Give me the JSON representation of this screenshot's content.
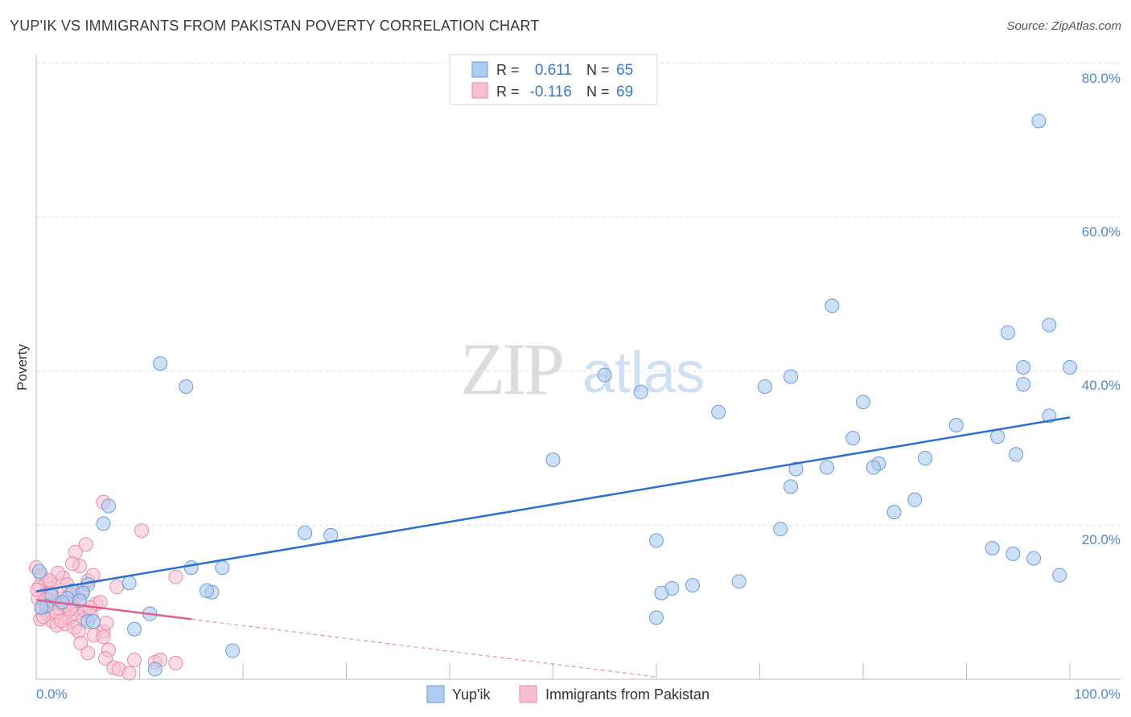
{
  "title": "YUP'IK VS IMMIGRANTS FROM PAKISTAN POVERTY CORRELATION CHART",
  "source": "Source: ZipAtlas.com",
  "watermark": {
    "zip": "ZIP",
    "atlas": "atlas"
  },
  "legend_top": {
    "rows": [
      {
        "r_label": "R =",
        "r_value": "0.611",
        "n_label": "N =",
        "n_value": "65"
      },
      {
        "r_label": "R =",
        "r_value": "-0.116",
        "n_label": "N =",
        "n_value": "69"
      }
    ]
  },
  "legend_bottom": {
    "items": [
      "Yup'ik",
      "Immigrants from Pakistan"
    ]
  },
  "colors": {
    "blue_fill": "#aecbf0",
    "blue_stroke": "#6a9bd8",
    "blue_line": "#2b6fcf",
    "pink_fill": "#f7bfd0",
    "pink_stroke": "#e98aa8",
    "pink_line": "#e0608c",
    "tick_label": "#4f86cf",
    "grid": "#dddddd"
  },
  "chart_data": {
    "type": "scatter",
    "ylabel": "Poverty",
    "xlabel": "",
    "xlim": [
      0,
      100
    ],
    "ylim": [
      0,
      80
    ],
    "x_tick_labels": [
      "0.0%",
      "100.0%"
    ],
    "y_ticks": [
      20,
      40,
      60,
      80
    ],
    "y_tick_labels": [
      "20.0%",
      "40.0%",
      "60.0%",
      "80.0%"
    ],
    "grid": true,
    "series": [
      {
        "name": "Yup'ik",
        "trend": {
          "x": [
            0,
            100
          ],
          "y": [
            11.4,
            34.0
          ]
        },
        "points": [
          [
            97,
            72.5
          ],
          [
            77,
            48.5
          ],
          [
            98,
            46
          ],
          [
            94,
            45
          ],
          [
            100,
            40.5
          ],
          [
            95.5,
            40.5
          ],
          [
            12,
            41
          ],
          [
            14.5,
            38
          ],
          [
            55,
            39.5
          ],
          [
            73,
            39.3
          ],
          [
            70.5,
            38
          ],
          [
            95.5,
            38.3
          ],
          [
            58.5,
            37.3
          ],
          [
            80,
            36
          ],
          [
            66,
            34.7
          ],
          [
            98,
            34.2
          ],
          [
            89,
            33
          ],
          [
            93,
            31.5
          ],
          [
            79,
            31.3
          ],
          [
            94.8,
            29.2
          ],
          [
            50,
            28.5
          ],
          [
            86,
            28.7
          ],
          [
            81.5,
            28
          ],
          [
            76.5,
            27.5
          ],
          [
            73.5,
            27.3
          ],
          [
            81,
            27.5
          ],
          [
            73,
            25
          ],
          [
            85,
            23.3
          ],
          [
            83,
            21.7
          ],
          [
            7,
            22.5
          ],
          [
            6.5,
            20.2
          ],
          [
            72,
            19.5
          ],
          [
            26,
            19
          ],
          [
            28.5,
            18.7
          ],
          [
            60,
            18
          ],
          [
            92.5,
            17
          ],
          [
            94.5,
            16.3
          ],
          [
            96.5,
            15.7
          ],
          [
            15,
            14.5
          ],
          [
            18,
            14.5
          ],
          [
            99,
            13.5
          ],
          [
            9,
            12.5
          ],
          [
            5,
            12.3
          ],
          [
            68,
            12.7
          ],
          [
            63.5,
            12.2
          ],
          [
            61.5,
            11.8
          ],
          [
            17,
            11.3
          ],
          [
            3.5,
            11.5
          ],
          [
            4.5,
            11.2
          ],
          [
            16.5,
            11.5
          ],
          [
            60.5,
            11.2
          ],
          [
            0.3,
            14
          ],
          [
            1.5,
            10.8
          ],
          [
            3,
            10.5
          ],
          [
            4.2,
            10.2
          ],
          [
            2.5,
            10
          ],
          [
            1,
            9.5
          ],
          [
            0.5,
            9.3
          ],
          [
            11,
            8.5
          ],
          [
            5,
            7.5
          ],
          [
            5.5,
            7.5
          ],
          [
            60,
            8
          ],
          [
            9.5,
            6.5
          ],
          [
            19,
            3.7
          ],
          [
            11.5,
            1.3
          ]
        ]
      },
      {
        "name": "Immigrants from Pakistan",
        "trend": {
          "x": [
            0,
            15
          ],
          "y": [
            10.3,
            7.8
          ]
        },
        "trend_dashed": {
          "x": [
            15,
            60
          ],
          "y": [
            7.8,
            0.3
          ]
        },
        "points": [
          [
            0,
            14.5
          ],
          [
            0.5,
            13.5
          ],
          [
            1,
            12.5
          ],
          [
            0.3,
            12
          ],
          [
            1.5,
            11.8
          ],
          [
            0.8,
            11
          ],
          [
            0.2,
            10.5
          ],
          [
            1.2,
            10.2
          ],
          [
            1.8,
            10
          ],
          [
            2.2,
            9.8
          ],
          [
            2.5,
            10.5
          ],
          [
            0.6,
            9.2
          ],
          [
            1.1,
            8.5
          ],
          [
            0.4,
            7.8
          ],
          [
            1.6,
            7.5
          ],
          [
            2,
            7
          ],
          [
            2.8,
            7.2
          ],
          [
            3.2,
            8
          ],
          [
            3.6,
            9.5
          ],
          [
            4,
            10.8
          ],
          [
            4.5,
            11.5
          ],
          [
            5,
            12.8
          ],
          [
            5.5,
            13.5
          ],
          [
            4.2,
            14.7
          ],
          [
            3.8,
            16.5
          ],
          [
            4.8,
            17.5
          ],
          [
            3.5,
            15
          ],
          [
            2.6,
            13.2
          ],
          [
            3,
            12.3
          ],
          [
            3.4,
            11
          ],
          [
            2.3,
            9.2
          ],
          [
            3.9,
            8.5
          ],
          [
            4.6,
            7.8
          ],
          [
            5.3,
            8.3
          ],
          [
            5.8,
            9.8
          ],
          [
            6.2,
            10
          ],
          [
            6.5,
            6.2
          ],
          [
            3.7,
            6.7
          ],
          [
            4.1,
            6.2
          ],
          [
            5.6,
            5.7
          ],
          [
            4.3,
            4.7
          ],
          [
            5,
            3.4
          ],
          [
            6.5,
            5.5
          ],
          [
            7,
            3.8
          ],
          [
            6.7,
            2.7
          ],
          [
            7.5,
            1.5
          ],
          [
            8,
            1.3
          ],
          [
            9,
            0.8
          ],
          [
            9.5,
            2.5
          ],
          [
            11.5,
            2.2
          ],
          [
            12,
            2.5
          ],
          [
            13.5,
            2.1
          ],
          [
            6.5,
            23
          ],
          [
            10.2,
            19.3
          ],
          [
            7.8,
            12
          ],
          [
            13.5,
            13.3
          ],
          [
            2.1,
            13.8
          ],
          [
            1.4,
            11.2
          ],
          [
            0.9,
            10.4
          ],
          [
            2.7,
            9.6
          ],
          [
            3.3,
            9.1
          ],
          [
            4.7,
            8.9
          ],
          [
            5.2,
            9.3
          ],
          [
            0.7,
            8.1
          ],
          [
            1.9,
            8.7
          ],
          [
            2.4,
            7.6
          ],
          [
            6.8,
            7.3
          ],
          [
            1.3,
            12.8
          ],
          [
            0.1,
            11.6
          ]
        ]
      }
    ]
  }
}
